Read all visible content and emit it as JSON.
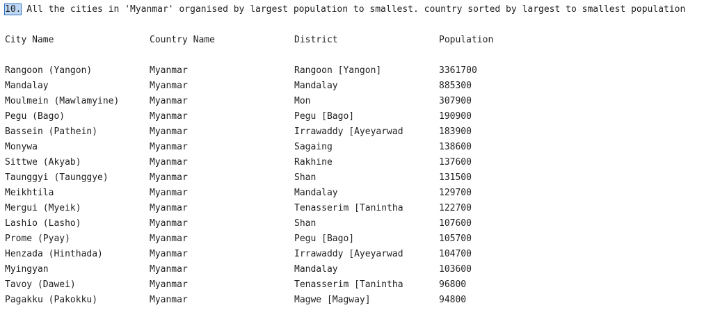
{
  "output": {
    "heading_number": "10.",
    "heading_text": " All the cities in 'Myanmar' organised by largest population to smallest. country sorted by largest to smallest population",
    "columns": [
      "City Name",
      "Country Name",
      "District",
      "Population"
    ],
    "rows": [
      [
        "Rangoon (Yangon)",
        "Myanmar",
        "Rangoon [Yangon]",
        "3361700"
      ],
      [
        "Mandalay",
        "Myanmar",
        "Mandalay",
        "885300"
      ],
      [
        "Moulmein (Mawlamyine)",
        "Myanmar",
        "Mon",
        "307900"
      ],
      [
        "Pegu (Bago)",
        "Myanmar",
        "Pegu [Bago]",
        "190900"
      ],
      [
        "Bassein (Pathein)",
        "Myanmar",
        "Irrawaddy [Ayeyarwad",
        "183900"
      ],
      [
        "Monywa",
        "Myanmar",
        "Sagaing",
        "138600"
      ],
      [
        "Sittwe (Akyab)",
        "Myanmar",
        "Rakhine",
        "137600"
      ],
      [
        "Taunggyi (Taunggye)",
        "Myanmar",
        "Shan",
        "131500"
      ],
      [
        "Meikhtila",
        "Myanmar",
        "Mandalay",
        "129700"
      ],
      [
        "Mergui (Myeik)",
        "Myanmar",
        "Tenasserim [Tanintha",
        "122700"
      ],
      [
        "Lashio (Lasho)",
        "Myanmar",
        "Shan",
        "107600"
      ],
      [
        "Prome (Pyay)",
        "Myanmar",
        "Pegu [Bago]",
        "105700"
      ],
      [
        "Henzada (Hinthada)",
        "Myanmar",
        "Irrawaddy [Ayeyarwad",
        "104700"
      ],
      [
        "Myingyan",
        "Myanmar",
        "Mandalay",
        "103600"
      ],
      [
        "Tavoy (Dawei)",
        "Myanmar",
        "Tenasserim [Tanintha",
        "96800"
      ],
      [
        "Pagakku (Pakokku)",
        "Myanmar",
        "Magwe [Magway]",
        "94800"
      ]
    ]
  }
}
